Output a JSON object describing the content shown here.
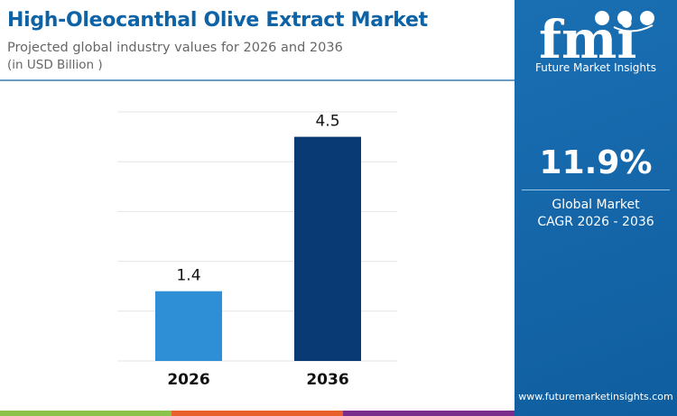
{
  "header": {
    "title": "High-Oleocanthal Olive Extract Market",
    "subtitle": "Projected global industry values for 2026 and 2036",
    "unit": "(in USD Billion )"
  },
  "sidebar": {
    "brand": "Future Market Insights",
    "logo_text": "fmi",
    "cagr_value": "11.9%",
    "cagr_label1": "Global Market",
    "cagr_label2": "CAGR 2026 - 2036",
    "url": "www.futuremarketinsights.com"
  },
  "colors": {
    "primary": "#0d63a5",
    "bar_2026": "#2f8fd6",
    "bar_2036": "#0a3a73",
    "stripes": [
      "#8bc34a",
      "#e8602c",
      "#7b2d8b"
    ]
  },
  "chart_data": {
    "type": "bar",
    "categories": [
      "2026",
      "2036"
    ],
    "values": [
      1.4,
      4.5
    ],
    "data_labels": [
      "1.4",
      "4.5"
    ],
    "ylim": [
      0,
      5
    ],
    "grid": true,
    "xlabel": "",
    "ylabel": ""
  }
}
